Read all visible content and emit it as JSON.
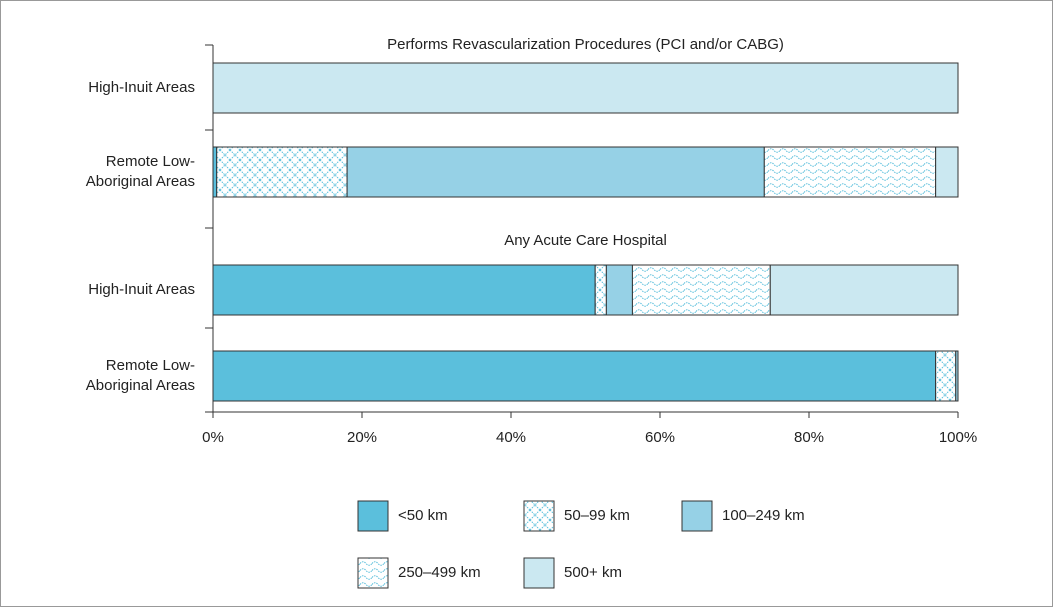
{
  "chart_data": {
    "type": "stacked-bar-horizontal",
    "categories": [
      "High-Inuit Areas",
      "Remote Low-Aboriginal Areas",
      "High-Inuit Areas",
      "Remote Low-Aboriginal Areas"
    ],
    "groups": [
      {
        "label": "Performs Revascularization Procedures (PCI and/or CABG)"
      },
      {
        "label": "Any  Acute Care Hospital"
      }
    ],
    "series": [
      {
        "name": "<50 km",
        "color": "#5bbfdc",
        "values": [
          0,
          0.5,
          51.3,
          97
        ]
      },
      {
        "name": "50–99 km",
        "color": "#5bbfdc",
        "pattern": "crosshatch",
        "values": [
          0,
          17.5,
          1.5,
          2.7
        ]
      },
      {
        "name": "100–249 km",
        "color": "#96d1e6",
        "values": [
          0,
          56,
          3.5,
          0.3
        ]
      },
      {
        "name": "250–499 km",
        "color": "#5bbfdc",
        "pattern": "wave",
        "values": [
          0,
          23,
          18.5,
          0
        ]
      },
      {
        "name": "500+ km",
        "color": "#cbe8f1",
        "values": [
          100,
          3,
          25.2,
          0
        ]
      }
    ],
    "xlim": [
      0,
      100
    ],
    "xticks": [
      {
        "value": 0,
        "label": "0%"
      },
      {
        "value": 20,
        "label": "20%"
      },
      {
        "value": 40,
        "label": "40%"
      },
      {
        "value": 60,
        "label": "60%"
      },
      {
        "value": 80,
        "label": "80%"
      },
      {
        "value": 100,
        "label": "100%"
      }
    ]
  }
}
